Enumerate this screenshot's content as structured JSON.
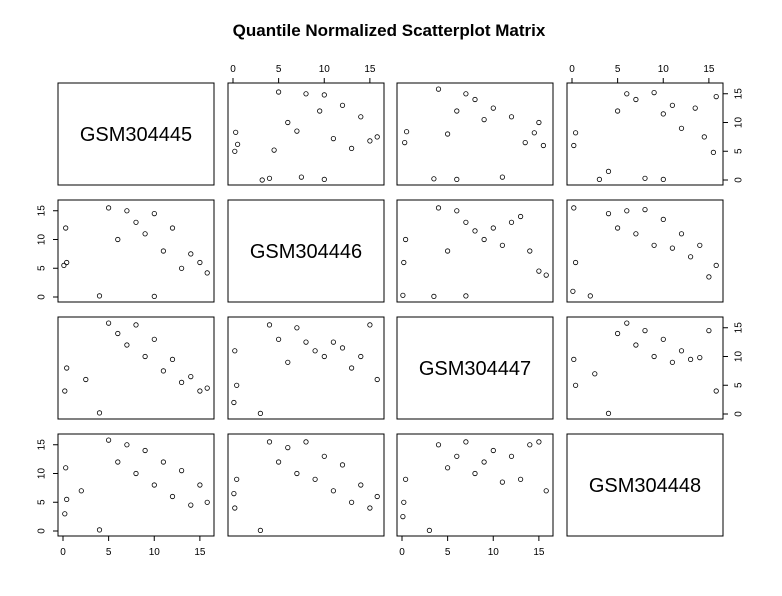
{
  "chart_data": {
    "type": "scatter",
    "title": "Quantile Normalized Scatterplot Matrix",
    "variables": [
      "GSM304445",
      "GSM304446",
      "GSM304447",
      "GSM304448"
    ],
    "axis_range": [
      0,
      16
    ],
    "x_ticks": [
      0,
      5,
      10,
      15
    ],
    "y_ticks": [
      0,
      5,
      10,
      15
    ],
    "grid": false,
    "point_style": "open circles",
    "point_color": "#000000",
    "panels": [
      {
        "row": 1,
        "col": 2,
        "x": "GSM304446",
        "y": "GSM304445",
        "x_range": [
          0,
          16
        ],
        "y_range": [
          0,
          16
        ],
        "points": [
          [
            0.2,
            5.0
          ],
          [
            0.3,
            8.3
          ],
          [
            0.5,
            6.2
          ],
          [
            3.2,
            0.0
          ],
          [
            4.0,
            0.3
          ],
          [
            4.5,
            5.2
          ],
          [
            5.0,
            15.3
          ],
          [
            6.0,
            10.0
          ],
          [
            7.0,
            8.5
          ],
          [
            8.0,
            15.0
          ],
          [
            9.5,
            12.0
          ],
          [
            10.0,
            14.8
          ],
          [
            11.0,
            7.2
          ],
          [
            12.0,
            13.0
          ],
          [
            13.0,
            5.5
          ],
          [
            14.0,
            11.0
          ],
          [
            15.0,
            6.8
          ],
          [
            15.8,
            7.5
          ],
          [
            10.0,
            0.1
          ],
          [
            7.5,
            0.5
          ]
        ]
      },
      {
        "row": 1,
        "col": 3,
        "x": "GSM304447",
        "y": "GSM304445",
        "x_range": [
          0,
          16
        ],
        "y_range": [
          0,
          16
        ],
        "points": [
          [
            0.3,
            6.5
          ],
          [
            0.5,
            8.4
          ],
          [
            3.5,
            0.2
          ],
          [
            4.0,
            15.8
          ],
          [
            5.0,
            8.0
          ],
          [
            6.0,
            12.0
          ],
          [
            7.0,
            15.0
          ],
          [
            8.0,
            14.0
          ],
          [
            9.0,
            10.5
          ],
          [
            10.0,
            12.5
          ],
          [
            11.0,
            0.5
          ],
          [
            12.0,
            11.0
          ],
          [
            13.5,
            6.5
          ],
          [
            14.5,
            8.2
          ],
          [
            15.5,
            6.0
          ],
          [
            15.0,
            10.0
          ],
          [
            6.0,
            0.1
          ]
        ]
      },
      {
        "row": 1,
        "col": 4,
        "x": "GSM304448",
        "y": "GSM304445",
        "x_range": [
          0,
          16
        ],
        "y_range": [
          0,
          16
        ],
        "points": [
          [
            0.2,
            6.0
          ],
          [
            0.4,
            8.2
          ],
          [
            3.0,
            0.1
          ],
          [
            4.0,
            1.5
          ],
          [
            5.0,
            12.0
          ],
          [
            6.0,
            15.0
          ],
          [
            7.0,
            14.0
          ],
          [
            8.0,
            0.3
          ],
          [
            9.0,
            15.2
          ],
          [
            10.0,
            11.5
          ],
          [
            11.0,
            13.0
          ],
          [
            12.0,
            9.0
          ],
          [
            13.5,
            12.5
          ],
          [
            14.5,
            7.5
          ],
          [
            15.5,
            4.8
          ],
          [
            15.8,
            14.5
          ],
          [
            10.0,
            0.1
          ]
        ]
      },
      {
        "row": 2,
        "col": 1,
        "x": "GSM304445",
        "y": "GSM304446",
        "x_range": [
          0,
          16
        ],
        "y_range": [
          0,
          16
        ],
        "points": [
          [
            0.3,
            12.0
          ],
          [
            0.1,
            5.5
          ],
          [
            0.4,
            6.0
          ],
          [
            4.0,
            0.2
          ],
          [
            5.0,
            15.5
          ],
          [
            6.0,
            10.0
          ],
          [
            7.0,
            15.0
          ],
          [
            8.0,
            13.0
          ],
          [
            9.0,
            11.0
          ],
          [
            10.0,
            14.5
          ],
          [
            11.0,
            8.0
          ],
          [
            12.0,
            12.0
          ],
          [
            13.0,
            5.0
          ],
          [
            14.0,
            7.5
          ],
          [
            15.0,
            6.0
          ],
          [
            15.8,
            4.2
          ],
          [
            10.0,
            0.1
          ]
        ]
      },
      {
        "row": 2,
        "col": 3,
        "x": "GSM304447",
        "y": "GSM304446",
        "x_range": [
          0,
          16
        ],
        "y_range": [
          0,
          16
        ],
        "points": [
          [
            0.2,
            6.0
          ],
          [
            0.4,
            10.0
          ],
          [
            0.1,
            0.3
          ],
          [
            3.5,
            0.1
          ],
          [
            4.0,
            15.5
          ],
          [
            5.0,
            8.0
          ],
          [
            6.0,
            15.0
          ],
          [
            7.0,
            13.0
          ],
          [
            8.0,
            11.5
          ],
          [
            9.0,
            10.0
          ],
          [
            10.0,
            12.0
          ],
          [
            11.0,
            9.0
          ],
          [
            12.0,
            13.0
          ],
          [
            13.0,
            14.0
          ],
          [
            14.0,
            8.0
          ],
          [
            15.0,
            4.5
          ],
          [
            15.8,
            3.8
          ],
          [
            7.0,
            0.2
          ]
        ]
      },
      {
        "row": 2,
        "col": 4,
        "x": "GSM304448",
        "y": "GSM304446",
        "x_range": [
          0,
          16
        ],
        "y_range": [
          0,
          16
        ],
        "points": [
          [
            0.2,
            15.5
          ],
          [
            0.4,
            6.0
          ],
          [
            0.1,
            1.0
          ],
          [
            2.0,
            0.2
          ],
          [
            4.0,
            14.5
          ],
          [
            5.0,
            12.0
          ],
          [
            6.0,
            15.0
          ],
          [
            7.0,
            11.0
          ],
          [
            8.0,
            15.2
          ],
          [
            9.0,
            9.0
          ],
          [
            10.0,
            13.5
          ],
          [
            11.0,
            8.5
          ],
          [
            12.0,
            11.0
          ],
          [
            13.0,
            7.0
          ],
          [
            14.0,
            9.0
          ],
          [
            15.0,
            3.5
          ],
          [
            15.8,
            5.5
          ]
        ]
      },
      {
        "row": 3,
        "col": 1,
        "x": "GSM304445",
        "y": "GSM304447",
        "x_range": [
          0,
          16
        ],
        "y_range": [
          0,
          16
        ],
        "points": [
          [
            0.2,
            4.0
          ],
          [
            0.4,
            8.0
          ],
          [
            2.5,
            6.0
          ],
          [
            4.0,
            0.2
          ],
          [
            5.0,
            15.8
          ],
          [
            6.0,
            14.0
          ],
          [
            7.0,
            12.0
          ],
          [
            8.0,
            15.5
          ],
          [
            9.0,
            10.0
          ],
          [
            10.0,
            13.0
          ],
          [
            11.0,
            7.5
          ],
          [
            12.0,
            9.5
          ],
          [
            13.0,
            5.5
          ],
          [
            14.0,
            6.5
          ],
          [
            15.0,
            4.0
          ],
          [
            15.8,
            4.5
          ]
        ]
      },
      {
        "row": 3,
        "col": 2,
        "x": "GSM304446",
        "y": "GSM304447",
        "x_range": [
          0,
          16
        ],
        "y_range": [
          0,
          16
        ],
        "points": [
          [
            0.2,
            11.0
          ],
          [
            0.4,
            5.0
          ],
          [
            0.1,
            2.0
          ],
          [
            3.0,
            0.1
          ],
          [
            4.0,
            15.5
          ],
          [
            5.0,
            13.0
          ],
          [
            6.0,
            9.0
          ],
          [
            7.0,
            15.0
          ],
          [
            8.0,
            12.5
          ],
          [
            9.0,
            11.0
          ],
          [
            10.0,
            10.0
          ],
          [
            11.0,
            12.5
          ],
          [
            12.0,
            11.5
          ],
          [
            13.0,
            8.0
          ],
          [
            14.0,
            10.0
          ],
          [
            15.0,
            15.5
          ],
          [
            15.8,
            6.0
          ]
        ]
      },
      {
        "row": 3,
        "col": 4,
        "x": "GSM304448",
        "y": "GSM304447",
        "x_range": [
          0,
          16
        ],
        "y_range": [
          0,
          16
        ],
        "points": [
          [
            0.2,
            9.5
          ],
          [
            0.4,
            5.0
          ],
          [
            2.5,
            7.0
          ],
          [
            4.0,
            0.1
          ],
          [
            5.0,
            14.0
          ],
          [
            6.0,
            15.8
          ],
          [
            7.0,
            12.0
          ],
          [
            8.0,
            14.5
          ],
          [
            9.0,
            10.0
          ],
          [
            10.0,
            13.0
          ],
          [
            11.0,
            9.0
          ],
          [
            12.0,
            11.0
          ],
          [
            13.0,
            9.5
          ],
          [
            14.0,
            9.8
          ],
          [
            15.0,
            14.5
          ],
          [
            15.8,
            4.0
          ]
        ]
      },
      {
        "row": 4,
        "col": 1,
        "x": "GSM304445",
        "y": "GSM304448",
        "x_range": [
          0,
          16
        ],
        "y_range": [
          0,
          16
        ],
        "points": [
          [
            0.2,
            3.0
          ],
          [
            0.3,
            11.0
          ],
          [
            0.4,
            5.5
          ],
          [
            2.0,
            7.0
          ],
          [
            4.0,
            0.2
          ],
          [
            5.0,
            15.8
          ],
          [
            6.0,
            12.0
          ],
          [
            7.0,
            15.0
          ],
          [
            8.0,
            10.0
          ],
          [
            9.0,
            14.0
          ],
          [
            10.0,
            8.0
          ],
          [
            11.0,
            12.0
          ],
          [
            12.0,
            6.0
          ],
          [
            13.0,
            10.5
          ],
          [
            14.0,
            4.5
          ],
          [
            15.0,
            8.0
          ],
          [
            15.8,
            5.0
          ]
        ]
      },
      {
        "row": 4,
        "col": 2,
        "x": "GSM304446",
        "y": "GSM304448",
        "x_range": [
          0,
          16
        ],
        "y_range": [
          0,
          16
        ],
        "points": [
          [
            0.2,
            4.0
          ],
          [
            0.4,
            9.0
          ],
          [
            0.1,
            6.5
          ],
          [
            3.0,
            0.1
          ],
          [
            4.0,
            15.5
          ],
          [
            5.0,
            12.0
          ],
          [
            6.0,
            14.5
          ],
          [
            7.0,
            10.0
          ],
          [
            8.0,
            15.5
          ],
          [
            9.0,
            9.0
          ],
          [
            10.0,
            13.0
          ],
          [
            11.0,
            7.0
          ],
          [
            12.0,
            11.5
          ],
          [
            13.0,
            5.0
          ],
          [
            14.0,
            8.0
          ],
          [
            15.0,
            4.0
          ],
          [
            15.8,
            6.0
          ]
        ]
      },
      {
        "row": 4,
        "col": 3,
        "x": "GSM304447",
        "y": "GSM304448",
        "x_range": [
          0,
          16
        ],
        "y_range": [
          0,
          16
        ],
        "points": [
          [
            0.2,
            5.0
          ],
          [
            0.4,
            9.0
          ],
          [
            0.1,
            2.5
          ],
          [
            3.0,
            0.1
          ],
          [
            4.0,
            15.0
          ],
          [
            5.0,
            11.0
          ],
          [
            6.0,
            13.0
          ],
          [
            7.0,
            15.5
          ],
          [
            8.0,
            10.0
          ],
          [
            9.0,
            12.0
          ],
          [
            10.0,
            14.0
          ],
          [
            11.0,
            8.5
          ],
          [
            12.0,
            13.0
          ],
          [
            13.0,
            9.0
          ],
          [
            14.0,
            15.0
          ],
          [
            15.0,
            15.5
          ],
          [
            15.8,
            7.0
          ]
        ]
      }
    ]
  }
}
